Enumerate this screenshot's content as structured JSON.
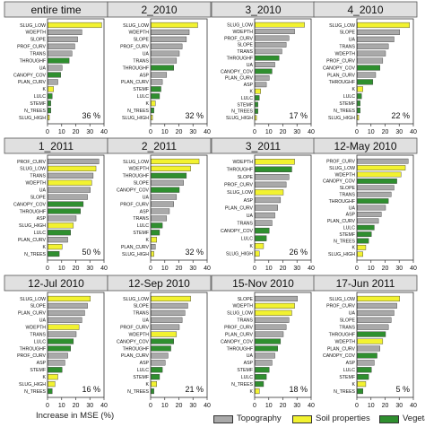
{
  "colors": {
    "topography": "#a9a9a9",
    "soil": "#f2f230",
    "vegetation": "#2f8f2f",
    "title_bg": "#e0e0e0"
  },
  "figure": {
    "x_caption": "Increase in MSE (%)",
    "legend": [
      {
        "label": "Topography",
        "class": "topography"
      },
      {
        "label": "Soil properties",
        "class": "soil"
      },
      {
        "label": "Vegetation",
        "class": "vegetation"
      }
    ]
  },
  "chart_data": [
    {
      "type": "bar",
      "title": "entire time",
      "annotation": "36 %",
      "xlim": [
        0,
        40
      ],
      "ticks": [
        0,
        10,
        20,
        30,
        40
      ],
      "categories": [
        "SLUG_LOW",
        "WDEPTH",
        "SLOPE",
        "PROF_CURV",
        "TRANS",
        "THROUGHF",
        "UA",
        "CANOPY_COV",
        "PLAN_CURV",
        "K",
        "LULC",
        "STEMF",
        "N_TREES",
        "SLUG_HIGH"
      ],
      "values": [
        38,
        24,
        21,
        19,
        17,
        15,
        10,
        9,
        7,
        4,
        3,
        2,
        2,
        1
      ],
      "classes": [
        "soil",
        "topography",
        "topography",
        "topography",
        "topography",
        "vegetation",
        "topography",
        "vegetation",
        "topography",
        "soil",
        "vegetation",
        "vegetation",
        "vegetation",
        "soil"
      ]
    },
    {
      "type": "bar",
      "title": "2_2010",
      "annotation": "32 %",
      "xlim": [
        0,
        40
      ],
      "ticks": [
        0,
        10,
        20,
        30,
        40
      ],
      "categories": [
        "SLUG_LOW",
        "WDEPTH",
        "SLOPE",
        "PROF_CURV",
        "UA",
        "TRANS",
        "THROUGHF",
        "ASP",
        "PLAN_CURV",
        "STEMF",
        "LULC",
        "K",
        "N_TREES",
        "SLUG_HIGH"
      ],
      "values": [
        33,
        27,
        25,
        22,
        20,
        18,
        16,
        11,
        8,
        7,
        6,
        3,
        2,
        1
      ],
      "classes": [
        "soil",
        "topography",
        "topography",
        "topography",
        "topography",
        "topography",
        "vegetation",
        "topography",
        "topography",
        "vegetation",
        "vegetation",
        "soil",
        "vegetation",
        "soil"
      ]
    },
    {
      "type": "bar",
      "title": "3_2010",
      "annotation": "17 %",
      "xlim": [
        0,
        40
      ],
      "ticks": [
        0,
        10,
        20,
        30,
        40
      ],
      "categories": [
        "SLUG_LOW",
        "WDEPTH",
        "PROF_CURV",
        "SLOPE",
        "TRANS",
        "THROUGHF",
        "UA",
        "CANOPY_COV",
        "PLAN_CURV",
        "ASP",
        "K",
        "LULC",
        "STEMF",
        "N_TREES",
        "SLUG_HIGH"
      ],
      "values": [
        35,
        28,
        24,
        22,
        19,
        17,
        14,
        12,
        10,
        8,
        4,
        3,
        2,
        2,
        1
      ],
      "classes": [
        "soil",
        "topography",
        "topography",
        "topography",
        "topography",
        "vegetation",
        "topography",
        "vegetation",
        "topography",
        "topography",
        "soil",
        "vegetation",
        "vegetation",
        "vegetation",
        "soil"
      ]
    },
    {
      "type": "bar",
      "title": "4_2010",
      "annotation": "22 %",
      "xlim": [
        0,
        40
      ],
      "ticks": [
        0,
        10,
        20,
        30,
        40
      ],
      "categories": [
        "SLUG_LOW",
        "SLOPE",
        "UA",
        "TRANS",
        "WDEPTH",
        "PROF_CURV",
        "CANOPY_COV",
        "PLAN_CURV",
        "THROUGHF",
        "K",
        "LULC",
        "STEMF",
        "N_TREES",
        "SLUG_HIGH"
      ],
      "values": [
        37,
        30,
        26,
        22,
        20,
        18,
        16,
        13,
        11,
        4,
        3,
        2,
        2,
        1
      ],
      "classes": [
        "soil",
        "topography",
        "topography",
        "topography",
        "topography",
        "topography",
        "vegetation",
        "topography",
        "vegetation",
        "soil",
        "vegetation",
        "vegetation",
        "vegetation",
        "soil"
      ]
    },
    {
      "type": "bar",
      "title": "1_2011",
      "annotation": "50 %",
      "xlim": [
        0,
        40
      ],
      "ticks": [
        0,
        10,
        20,
        30,
        40
      ],
      "categories": [
        "PROF_CURV",
        "SLUG_LOW",
        "TRANS",
        "WDEPTH",
        "UA",
        "SLOPE",
        "CANOPY_COV",
        "THROUGHF",
        "ASP",
        "SLUG_HIGH",
        "LULC",
        "PLAN_CURV",
        "K",
        "N_TREES"
      ],
      "values": [
        36,
        34,
        32,
        31,
        30,
        28,
        25,
        23,
        20,
        18,
        16,
        14,
        10,
        8
      ],
      "classes": [
        "topography",
        "soil",
        "topography",
        "soil",
        "topography",
        "topography",
        "vegetation",
        "vegetation",
        "topography",
        "soil",
        "vegetation",
        "topography",
        "soil",
        "vegetation"
      ]
    },
    {
      "type": "bar",
      "title": "2_2011",
      "annotation": "32 %",
      "xlim": [
        0,
        40
      ],
      "ticks": [
        0,
        10,
        20,
        30,
        40
      ],
      "categories": [
        "SLUG_LOW",
        "WDEPTH",
        "THROUGHF",
        "SLOPE",
        "CANOPY_COV",
        "UA",
        "PROF_CURV",
        "ASP",
        "TRANS",
        "LULC",
        "STEMF",
        "K",
        "PLAN_CURV",
        "SLUG_HIGH"
      ],
      "values": [
        34,
        28,
        25,
        23,
        20,
        18,
        16,
        13,
        11,
        8,
        6,
        4,
        3,
        2
      ],
      "classes": [
        "soil",
        "soil",
        "vegetation",
        "topography",
        "vegetation",
        "topography",
        "topography",
        "topography",
        "topography",
        "vegetation",
        "vegetation",
        "soil",
        "topography",
        "soil"
      ]
    },
    {
      "type": "bar",
      "title": "3_2011",
      "annotation": "26 %",
      "xlim": [
        0,
        40
      ],
      "ticks": [
        0,
        10,
        20,
        30,
        40
      ],
      "categories": [
        "WDEPTH",
        "THROUGHF",
        "SLOPE",
        "PROF_CURV",
        "SLUG_LOW",
        "ASP",
        "PLAN_CURV",
        "UA",
        "TRANS",
        "CANOPY_COV",
        "LULC",
        "K",
        "SLUG_HIGH"
      ],
      "values": [
        28,
        26,
        24,
        22,
        20,
        18,
        16,
        14,
        12,
        10,
        8,
        6,
        3
      ],
      "classes": [
        "soil",
        "vegetation",
        "topography",
        "topography",
        "soil",
        "topography",
        "topography",
        "topography",
        "topography",
        "vegetation",
        "vegetation",
        "soil",
        "soil"
      ]
    },
    {
      "type": "bar",
      "title": "12-May 2010",
      "annotation": "",
      "xlim": [
        0,
        40
      ],
      "ticks": [
        0,
        10,
        20,
        30,
        40
      ],
      "categories": [
        "PROF_CURV",
        "SLUG_LOW",
        "WDEPTH",
        "CANOPY_COV",
        "SLOPE",
        "TRANS",
        "THROUGHF",
        "UA",
        "ASP",
        "PLAN_CURV",
        "LULC",
        "STEMF",
        "N_TREES",
        "K",
        "SLUG_HIGH"
      ],
      "values": [
        36,
        34,
        31,
        28,
        26,
        24,
        22,
        20,
        17,
        15,
        12,
        10,
        8,
        6,
        4
      ],
      "classes": [
        "topography",
        "soil",
        "soil",
        "vegetation",
        "topography",
        "topography",
        "vegetation",
        "topography",
        "topography",
        "topography",
        "vegetation",
        "vegetation",
        "vegetation",
        "soil",
        "soil"
      ]
    },
    {
      "type": "bar",
      "title": "12-Jul 2010",
      "annotation": "16 %",
      "xlim": [
        0,
        40
      ],
      "ticks": [
        0,
        10,
        20,
        30,
        40
      ],
      "categories": [
        "SLUG_LOW",
        "SLOPE",
        "PLAN_CURV",
        "UA",
        "WDEPTH",
        "TRANS",
        "LULC",
        "THROUGHF",
        "PROF_CURV",
        "ASP",
        "STEMF",
        "K",
        "SLUG_HIGH",
        "N_TREES"
      ],
      "values": [
        30,
        28,
        26,
        24,
        22,
        20,
        18,
        16,
        14,
        12,
        10,
        7,
        5,
        3
      ],
      "classes": [
        "soil",
        "topography",
        "topography",
        "topography",
        "soil",
        "topography",
        "vegetation",
        "vegetation",
        "topography",
        "topography",
        "vegetation",
        "soil",
        "soil",
        "vegetation"
      ]
    },
    {
      "type": "bar",
      "title": "12-Sep 2010",
      "annotation": "21 %",
      "xlim": [
        0,
        40
      ],
      "ticks": [
        0,
        10,
        20,
        30,
        40
      ],
      "categories": [
        "SLUG_LOW",
        "SLOPE",
        "TRANS",
        "UA",
        "PROF_CURV",
        "WDEPTH",
        "CANOPY_COV",
        "THROUGHF",
        "PLAN_CURV",
        "ASP",
        "LULC",
        "STEMF",
        "K",
        "N_TREES"
      ],
      "values": [
        28,
        26,
        24,
        22,
        20,
        18,
        16,
        14,
        12,
        10,
        8,
        6,
        4,
        2
      ],
      "classes": [
        "soil",
        "topography",
        "topography",
        "topography",
        "topography",
        "soil",
        "vegetation",
        "vegetation",
        "topography",
        "topography",
        "vegetation",
        "vegetation",
        "soil",
        "vegetation"
      ]
    },
    {
      "type": "bar",
      "title": "15-Nov 2010",
      "annotation": "18 %",
      "xlim": [
        0,
        40
      ],
      "ticks": [
        0,
        10,
        20,
        30,
        40
      ],
      "categories": [
        "SLOPE",
        "WDEPTH",
        "SLUG_LOW",
        "TRANS",
        "PROF_CURV",
        "PLAN_CURV",
        "CANOPY_COV",
        "THROUGHF",
        "UA",
        "ASP",
        "STEMF",
        "LULC",
        "N_TREES",
        "K"
      ],
      "values": [
        30,
        28,
        26,
        24,
        22,
        20,
        18,
        16,
        14,
        12,
        10,
        8,
        6,
        3
      ],
      "classes": [
        "topography",
        "soil",
        "soil",
        "topography",
        "topography",
        "topography",
        "vegetation",
        "vegetation",
        "topography",
        "topography",
        "vegetation",
        "vegetation",
        "vegetation",
        "soil"
      ]
    },
    {
      "type": "bar",
      "title": "17-Jun 2011",
      "annotation": "5 %",
      "xlim": [
        0,
        40
      ],
      "ticks": [
        0,
        10,
        20,
        30,
        40
      ],
      "categories": [
        "SLUG_LOW",
        "PROF_CURV",
        "UA",
        "SLOPE",
        "TRANS",
        "THROUGHF",
        "WDEPTH",
        "PLAN_CURV",
        "CANOPY_COV",
        "ASP",
        "LULC",
        "STEMF",
        "K",
        "N_TREES"
      ],
      "values": [
        30,
        28,
        26,
        24,
        22,
        20,
        18,
        16,
        14,
        12,
        10,
        8,
        6,
        4
      ],
      "classes": [
        "soil",
        "topography",
        "topography",
        "topography",
        "topography",
        "vegetation",
        "soil",
        "topography",
        "vegetation",
        "topography",
        "vegetation",
        "vegetation",
        "soil",
        "vegetation"
      ]
    }
  ]
}
